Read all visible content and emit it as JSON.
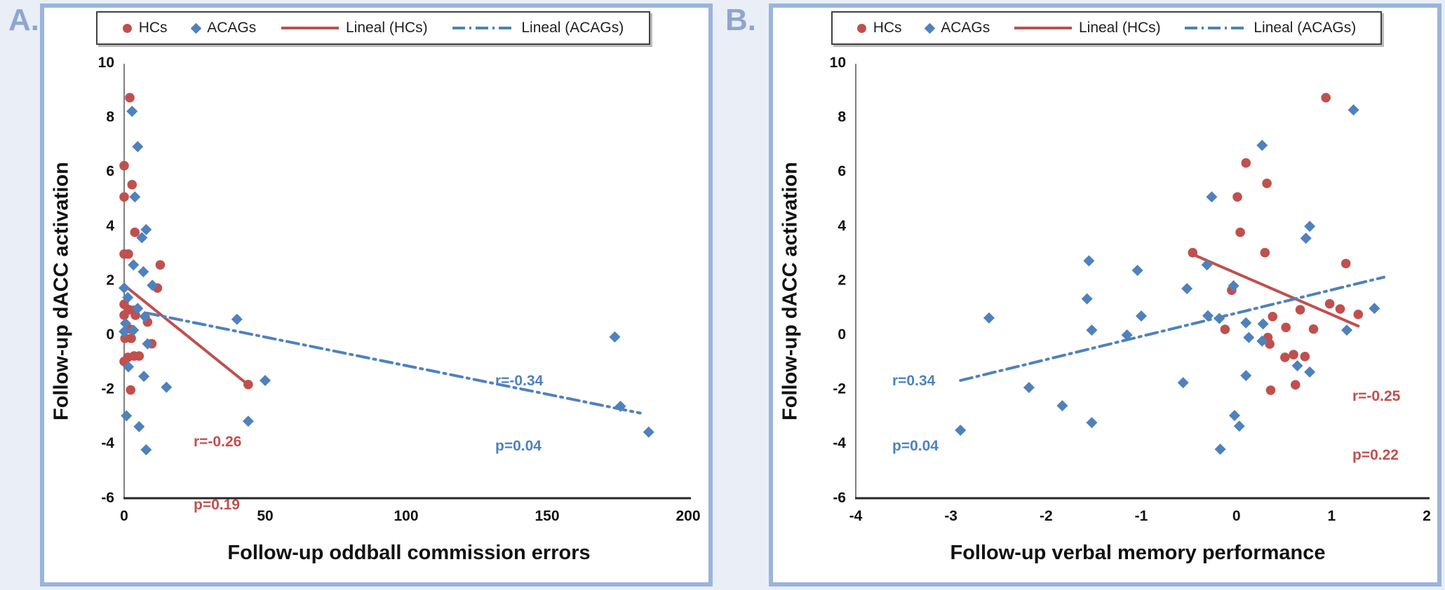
{
  "figure": {
    "panel_a_letter": "A.",
    "panel_b_letter": "B.",
    "legend": {
      "hcs_label": "HCs",
      "acags_label": "ACAGs",
      "lineal_hcs_label": "Lineal (HCs)",
      "lineal_acags_label": "Lineal (ACAGs)"
    },
    "colors": {
      "hcs": "#c0504d",
      "acags": "#4f81bd",
      "panel_border": "#9bb4da",
      "page_background": "#e9eef7",
      "panel_letter": "#8ea6cf"
    }
  },
  "chart_data": [
    {
      "type": "scatter",
      "title": "",
      "xlabel": "Follow-up oddball commission errors",
      "ylabel": "Follow-up dACC activation",
      "xlim": [
        0,
        200
      ],
      "ylim": [
        -6,
        10
      ],
      "xticks": [
        0,
        50,
        100,
        150,
        200
      ],
      "yticks": [
        10,
        8,
        6,
        4,
        2,
        0,
        -2,
        -4,
        -6
      ],
      "grid": false,
      "legend_position": "top",
      "series": [
        {
          "name": "HCs",
          "marker": "circle",
          "color": "#c0504d",
          "points": [
            [
              2,
              8.7
            ],
            [
              0,
              6.2
            ],
            [
              2.8,
              5.5
            ],
            [
              0,
              5.05
            ],
            [
              3.8,
              3.75
            ],
            [
              0,
              2.95
            ],
            [
              1.5,
              2.95
            ],
            [
              12.8,
              2.55
            ],
            [
              11.8,
              1.7
            ],
            [
              0,
              1.1
            ],
            [
              1.8,
              0.9
            ],
            [
              3.3,
              0.88
            ],
            [
              0,
              0.7
            ],
            [
              4,
              0.7
            ],
            [
              8.3,
              0.45
            ],
            [
              1.8,
              0.2
            ],
            [
              0.3,
              -0.15
            ],
            [
              2.5,
              -0.15
            ],
            [
              9.8,
              -0.35
            ],
            [
              1.3,
              -0.85
            ],
            [
              3.5,
              -0.8
            ],
            [
              5.3,
              -0.8
            ],
            [
              0,
              -1
            ],
            [
              2.3,
              -2.05
            ],
            [
              44,
              -1.85
            ]
          ]
        },
        {
          "name": "ACAGs",
          "marker": "diamond",
          "color": "#4f81bd",
          "points": [
            [
              2.8,
              8.2
            ],
            [
              4.8,
              6.9
            ],
            [
              3.8,
              5.05
            ],
            [
              7.8,
              3.85
            ],
            [
              6.3,
              3.55
            ],
            [
              3.3,
              2.55
            ],
            [
              6.8,
              2.3
            ],
            [
              10,
              1.8
            ],
            [
              0,
              1.7
            ],
            [
              1.3,
              1.35
            ],
            [
              4.8,
              0.95
            ],
            [
              7.3,
              0.65
            ],
            [
              0.5,
              0.4
            ],
            [
              3.3,
              0.15
            ],
            [
              0,
              0.1
            ],
            [
              8.3,
              -0.35
            ],
            [
              1.5,
              -1.2
            ],
            [
              7,
              -1.55
            ],
            [
              15,
              -1.95
            ],
            [
              40,
              0.55
            ],
            [
              50,
              -1.7
            ],
            [
              44,
              -3.2
            ],
            [
              0.8,
              -3
            ],
            [
              5.3,
              -3.4
            ],
            [
              7.8,
              -4.25
            ],
            [
              174,
              -0.1
            ],
            [
              176,
              -2.65
            ],
            [
              186,
              -3.6
            ]
          ]
        }
      ],
      "trendlines": [
        {
          "name": "Lineal (HCs)",
          "color": "#c0504d",
          "style": "solid",
          "from": [
            0.3,
            1.78
          ],
          "to": [
            44,
            -1.86
          ]
        },
        {
          "name": "Lineal (ACAGs)",
          "color": "#4f81bd",
          "style": "dashdot",
          "from": [
            8,
            0.78
          ],
          "to": [
            183,
            -2.9
          ]
        }
      ],
      "annotations": [
        {
          "lines": [
            "r=-0.34",
            "p=0.04"
          ],
          "color": "#4f81bd"
        },
        {
          "lines": [
            "r=-0.26",
            "p=0.19"
          ],
          "color": "#c0504d"
        }
      ]
    },
    {
      "type": "scatter",
      "title": "",
      "xlabel": "Follow-up verbal memory performance",
      "ylabel": "Follow-up dACC activation",
      "xlim": [
        -4,
        2
      ],
      "ylim": [
        -6,
        10
      ],
      "xticks": [
        -4,
        -3,
        -2,
        -1,
        0,
        1,
        2
      ],
      "yticks": [
        10,
        8,
        6,
        4,
        2,
        0,
        -2,
        -4,
        -6
      ],
      "grid": false,
      "legend_position": "top",
      "series": [
        {
          "name": "HCs",
          "marker": "circle",
          "color": "#c0504d",
          "points": [
            [
              0.94,
              8.7
            ],
            [
              0.1,
              6.3
            ],
            [
              0.32,
              5.55
            ],
            [
              0.01,
              5.05
            ],
            [
              0.04,
              3.75
            ],
            [
              0.3,
              3
            ],
            [
              -0.46,
              3
            ],
            [
              1.15,
              2.6
            ],
            [
              -0.05,
              1.62
            ],
            [
              0.98,
              1.12
            ],
            [
              1.09,
              0.93
            ],
            [
              0.67,
              0.9
            ],
            [
              1.28,
              0.73
            ],
            [
              0.38,
              0.65
            ],
            [
              0.52,
              0.25
            ],
            [
              0.81,
              0.19
            ],
            [
              -0.12,
              0.18
            ],
            [
              0.33,
              -0.12
            ],
            [
              0.35,
              -0.36
            ],
            [
              0.6,
              -0.75
            ],
            [
              0.51,
              -0.85
            ],
            [
              0.72,
              -0.82
            ],
            [
              0.62,
              -1.86
            ],
            [
              0.36,
              -2.06
            ]
          ]
        },
        {
          "name": "ACAGs",
          "marker": "diamond",
          "color": "#4f81bd",
          "points": [
            [
              1.23,
              8.25
            ],
            [
              0.27,
              6.95
            ],
            [
              -0.26,
              5.05
            ],
            [
              0.77,
              3.97
            ],
            [
              0.73,
              3.53
            ],
            [
              -1.55,
              2.7
            ],
            [
              -0.31,
              2.55
            ],
            [
              -1.04,
              2.35
            ],
            [
              -0.03,
              1.78
            ],
            [
              -0.52,
              1.68
            ],
            [
              -1.57,
              1.3
            ],
            [
              -2.6,
              0.6
            ],
            [
              -1,
              0.67
            ],
            [
              -0.3,
              0.68
            ],
            [
              -0.18,
              0.58
            ],
            [
              0.1,
              0.42
            ],
            [
              0.28,
              0.38
            ],
            [
              1.45,
              0.95
            ],
            [
              1.16,
              0.15
            ],
            [
              -1.52,
              0.15
            ],
            [
              -1.15,
              -0.03
            ],
            [
              0.13,
              -0.12
            ],
            [
              0.27,
              -0.25
            ],
            [
              0.64,
              -1.16
            ],
            [
              0.77,
              -1.39
            ],
            [
              0.1,
              -1.52
            ],
            [
              -0.56,
              -1.78
            ],
            [
              -2.18,
              -1.96
            ],
            [
              -1.83,
              -2.63
            ],
            [
              -1.52,
              -3.25
            ],
            [
              -2.9,
              -3.53
            ],
            [
              -0.02,
              -2.99
            ],
            [
              0.03,
              -3.38
            ],
            [
              -0.17,
              -4.23
            ]
          ]
        }
      ],
      "trendlines": [
        {
          "name": "Lineal (HCs)",
          "color": "#c0504d",
          "style": "solid",
          "from": [
            -0.48,
            2.97
          ],
          "to": [
            1.28,
            0.3
          ]
        },
        {
          "name": "Lineal (ACAGs)",
          "color": "#4f81bd",
          "style": "dashdot",
          "from": [
            -2.9,
            -1.7
          ],
          "to": [
            1.55,
            2.1
          ]
        }
      ],
      "annotations": [
        {
          "lines": [
            "r=0.34",
            "p=0.04"
          ],
          "color": "#4f81bd"
        },
        {
          "lines": [
            "r=-0.25",
            "p=0.22"
          ],
          "color": "#c0504d"
        }
      ]
    }
  ]
}
